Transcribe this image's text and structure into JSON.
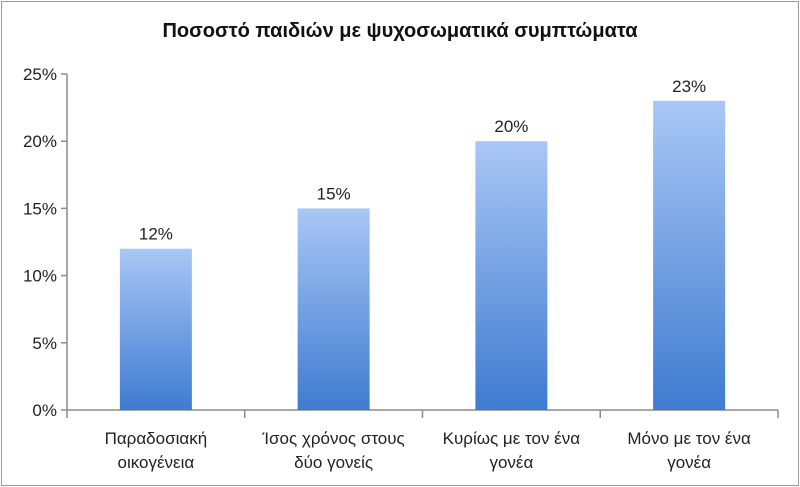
{
  "chart_data": {
    "type": "bar",
    "title": "Ποσοστό παιδιών με ψυχοσωματικά συμπτώματα",
    "categories": [
      [
        "Παραδοσιακή",
        "οικογένεια"
      ],
      [
        "Ίσος χρόνος στους",
        "δύο γονείς"
      ],
      [
        "Κυρίως με τον ένα",
        "γονέα"
      ],
      [
        "Μόνο με τον ένα",
        "γονέα"
      ]
    ],
    "values": [
      12,
      15,
      20,
      23
    ],
    "data_labels": [
      "12%",
      "15%",
      "20%",
      "23%"
    ],
    "ylim": [
      0,
      25
    ],
    "yticks": [
      0,
      5,
      10,
      15,
      20,
      25
    ],
    "ytick_labels": [
      "0%",
      "5%",
      "10%",
      "15%",
      "20%",
      "25%"
    ],
    "xlabel": "",
    "ylabel": "",
    "grid": false,
    "legend": "none",
    "colors": {
      "bar_top": "#a9c7f5",
      "bar_bottom": "#3f7bd0",
      "axis": "#8c8c8c",
      "text": "#222222"
    }
  }
}
